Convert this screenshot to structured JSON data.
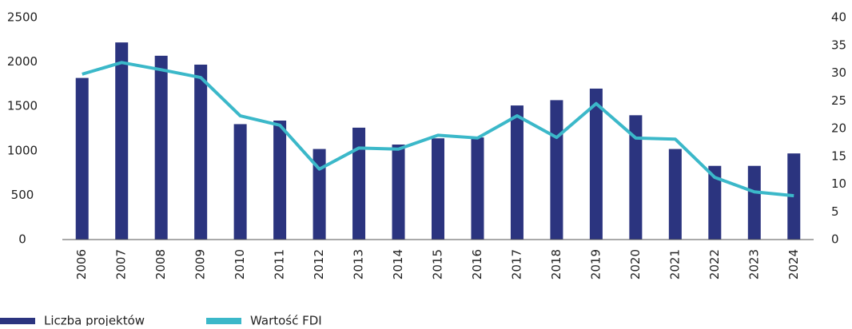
{
  "chart_data": {
    "type": "bar_line",
    "categories": [
      "2006",
      "2007",
      "2008",
      "2009",
      "2010",
      "2011",
      "2012",
      "2013",
      "2014",
      "2015",
      "2016",
      "2017",
      "2018",
      "2019",
      "2020",
      "2021",
      "2022",
      "2023",
      "2024"
    ],
    "series": [
      {
        "name": "Liczba projektów",
        "type": "bar",
        "color": "#2b347f",
        "axis": "y",
        "values": [
          1820,
          2220,
          2070,
          1970,
          1300,
          1340,
          1020,
          1260,
          1070,
          1140,
          1150,
          1510,
          1570,
          1700,
          1400,
          1020,
          830,
          830,
          970
        ]
      },
      {
        "name": "Wartość FDI",
        "type": "line",
        "color": "#3bb8c9",
        "axis": "y2",
        "values": [
          29.8,
          31.9,
          30.6,
          29.2,
          22.3,
          20.6,
          12.7,
          16.5,
          16.3,
          18.8,
          18.3,
          22.3,
          18.4,
          24.5,
          18.3,
          18.1,
          11.2,
          8.6,
          7.9
        ]
      }
    ],
    "ylim": [
      0,
      2500
    ],
    "yticks": [
      0,
      500,
      1000,
      1500,
      2000,
      2500
    ],
    "y2lim": [
      0,
      40
    ],
    "y2ticks": [
      0,
      5,
      10,
      15,
      20,
      25,
      30,
      35,
      40
    ],
    "grid": false,
    "legend": "bottom-left"
  }
}
